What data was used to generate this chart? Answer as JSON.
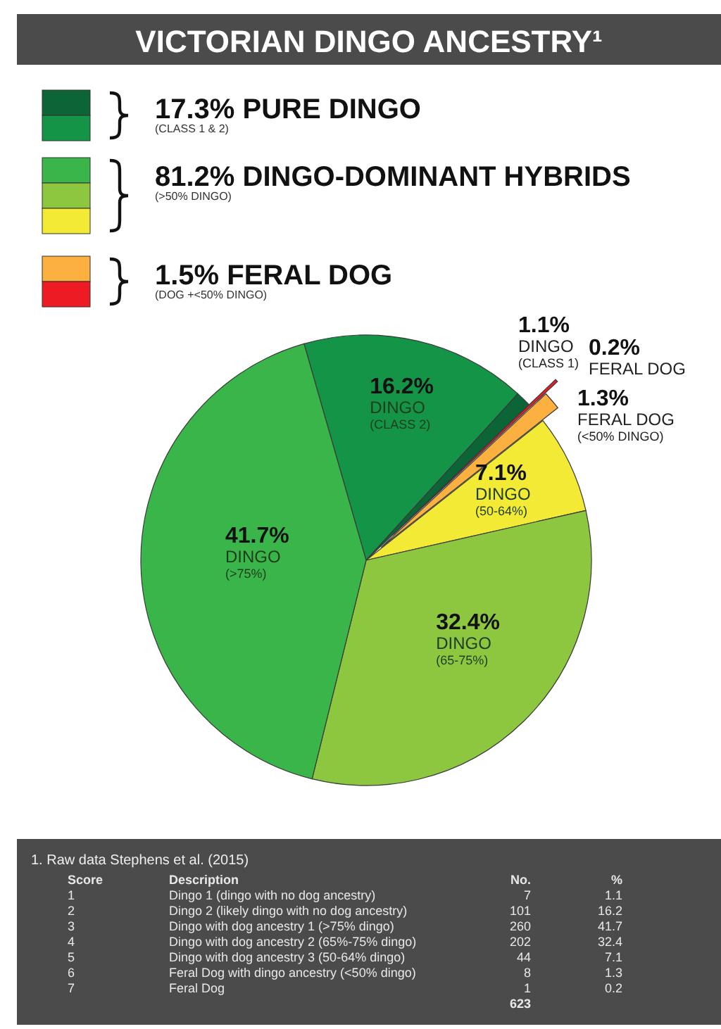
{
  "chart_data": {
    "type": "pie",
    "title": "VICTORIAN DINGO ANCESTRY¹",
    "categories": [
      "DINGO\n(CLASS 2)",
      "DINGO\n(CLASS 1)",
      "FERAL DOG",
      "FERAL DOG\n(<50% DINGO)",
      "DINGO\n(50-64%)",
      "DINGO\n(65-75%)",
      "DINGO\n(>75%)"
    ],
    "values": [
      16.2,
      1.1,
      0.2,
      1.3,
      7.1,
      32.4,
      41.7
    ],
    "value_labels": [
      "16.2%",
      "1.1%",
      "0.2%",
      "1.3%",
      "7.1%",
      "32.4%",
      "41.7%"
    ],
    "colors": [
      "#149447",
      "#0b6536",
      "#ed1c24",
      "#fbb040",
      "#f2ea34",
      "#8dc63f",
      "#3ab54a"
    ],
    "annotations": [
      "17.3% PURE DINGO",
      "(CLASS 1 & 2)",
      "81.2% DINGO-DOMINANT HYBRIDS",
      "(>50% DINGO)",
      "1.5% FERAL DOG",
      "(DOG +<50% DINGO)",
      "1. Raw data Stephens et al. (2015)",
      "Score\tDescription\tNo.\t%",
      "1\tDingo 1 (dingo with no dog ancestry)\t7\t1.1",
      "2\tDingo 2 (likely dingo with no dog ancestry)\t101\t16.2",
      "3\tDingo with dog ancestry 1 (>75% dingo)\t260\t41.7",
      "4\tDingo with dog ancestry 2 (65%-75% dingo)\t202\t32.4",
      "5\tDingo with dog ancestry 3 (50-64% dingo)\t44\t7.1",
      "6\tFeral Dog with dingo ancestry (<50% dingo)\t8\t1.3",
      "7\tFeral Dog\t1\t0.2",
      "\t\t623\t"
    ]
  }
}
